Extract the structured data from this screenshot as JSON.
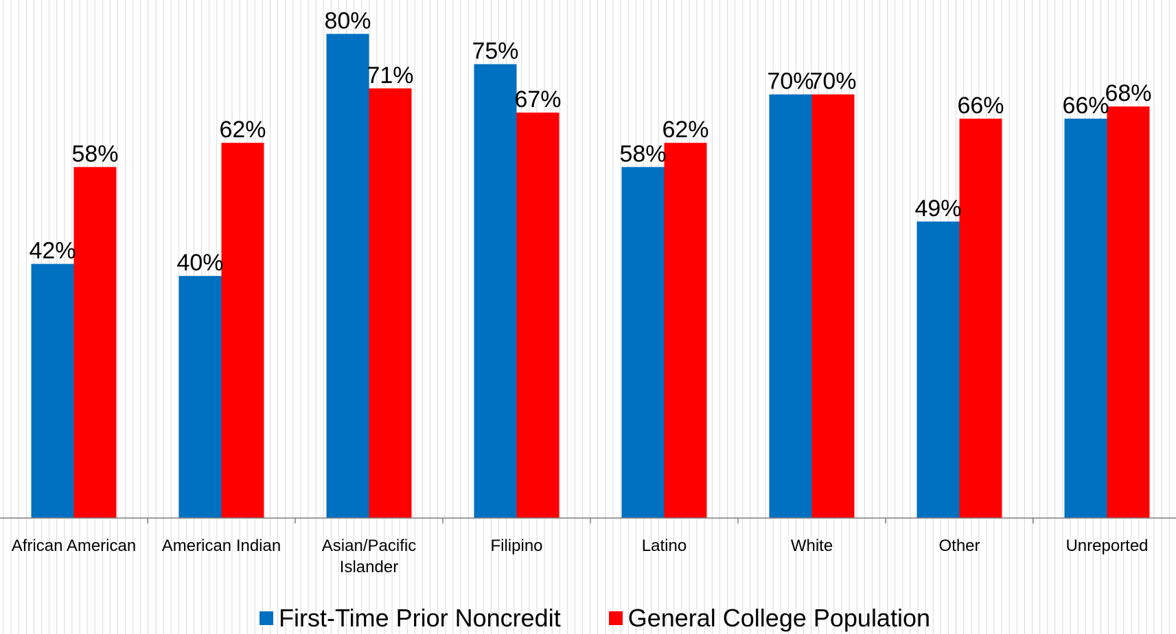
{
  "chart_data": {
    "type": "bar",
    "title": "",
    "xlabel": "",
    "ylabel": "",
    "ylim": [
      0,
      80
    ],
    "grid": "vertical-lines",
    "legend": "bottom",
    "categories": [
      "African American",
      "American Indian",
      "Asian/Pacific Islander",
      "Filipino",
      "Latino",
      "White",
      "Other",
      "Unreported"
    ],
    "series": [
      {
        "name": "First-Time Prior Noncredit",
        "color": "#0070C0",
        "values": [
          42,
          40,
          80,
          75,
          58,
          70,
          49,
          66
        ],
        "labels": [
          "42%",
          "40%",
          "80%",
          "75%",
          "58%",
          "70%",
          "49%",
          "66%"
        ]
      },
      {
        "name": "General College Population",
        "color": "#FF0000",
        "values": [
          58,
          62,
          71,
          67,
          62,
          70,
          66,
          68
        ],
        "labels": [
          "58%",
          "62%",
          "71%",
          "67%",
          "62%",
          "70%",
          "66%",
          "68%"
        ]
      }
    ]
  }
}
